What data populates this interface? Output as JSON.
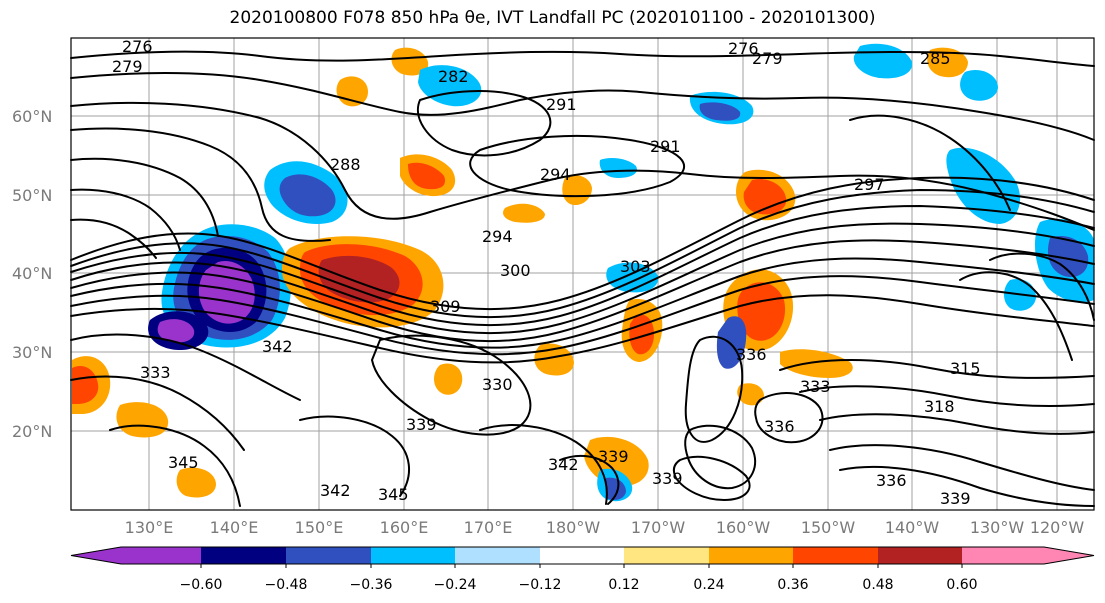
{
  "title": "2020100800 F078 850 hPa θe, IVT Landfall PC (2020101100 - 2020101300)",
  "lat_labels": [
    "60°N",
    "50°N",
    "40°N",
    "30°N",
    "20°N"
  ],
  "lon_labels": [
    "130°E",
    "140°E",
    "150°E",
    "160°E",
    "170°E",
    "180°W",
    "170°W",
    "160°W",
    "150°W",
    "140°W",
    "130°W",
    "120°W"
  ],
  "contour_labels": [
    "276",
    "279",
    "282",
    "288",
    "291",
    "294",
    "300",
    "309",
    "342",
    "333",
    "339",
    "345",
    "330",
    "336",
    "315",
    "318",
    "297",
    "291",
    "276",
    "279",
    "294",
    "303",
    "285",
    "342",
    "339",
    "336",
    "339",
    "342",
    "345",
    "333",
    "339",
    "336"
  ],
  "colorbar": {
    "ticks": [
      "−0.60",
      "−0.48",
      "−0.36",
      "−0.24",
      "−0.12",
      "0.12",
      "0.24",
      "0.36",
      "0.48",
      "0.60"
    ],
    "colors": [
      "#9933cc",
      "#000080",
      "#3050c0",
      "#00bfff",
      "#b0e0ff",
      "#ffffff",
      "#ffe680",
      "#ffa500",
      "#ff4500",
      "#b22222",
      "#ff85b3"
    ]
  }
}
